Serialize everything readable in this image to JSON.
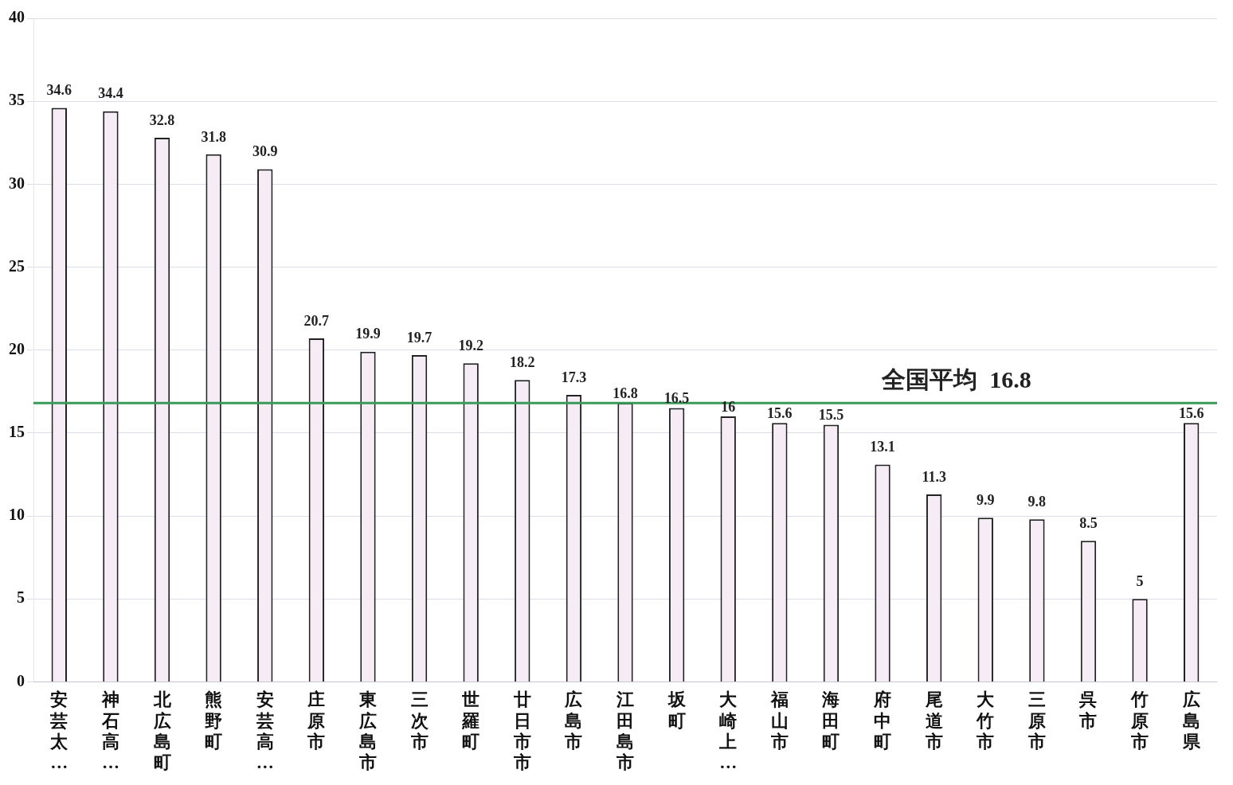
{
  "chart_data": {
    "type": "bar",
    "categories": [
      "安芸太…",
      "神石高…",
      "北広島町",
      "熊野町",
      "安芸高…",
      "庄原市",
      "東広島市",
      "三次市",
      "世羅町",
      "廿日市市",
      "広島市",
      "江田島市",
      "坂町",
      "大崎上…",
      "福山市",
      "海田町",
      "府中町",
      "尾道市",
      "大竹市",
      "三原市",
      "呉市",
      "竹原市",
      "広島県"
    ],
    "values": [
      34.6,
      34.4,
      32.8,
      31.8,
      30.9,
      20.7,
      19.9,
      19.7,
      19.2,
      18.2,
      17.3,
      16.8,
      16.5,
      16,
      15.6,
      15.5,
      13.1,
      11.3,
      9.9,
      9.8,
      8.5,
      5,
      15.6
    ],
    "color": "#f6ecf6",
    "ylim": [
      0,
      40
    ],
    "yticks": [
      0,
      5,
      10,
      15,
      20,
      25,
      30,
      35,
      40
    ],
    "grid": "y",
    "data_labels": true,
    "ref_lines": [
      {
        "axis": "y",
        "value": 16.8,
        "label": "全国平均  16.8",
        "color": "#3a9a5a"
      }
    ]
  }
}
